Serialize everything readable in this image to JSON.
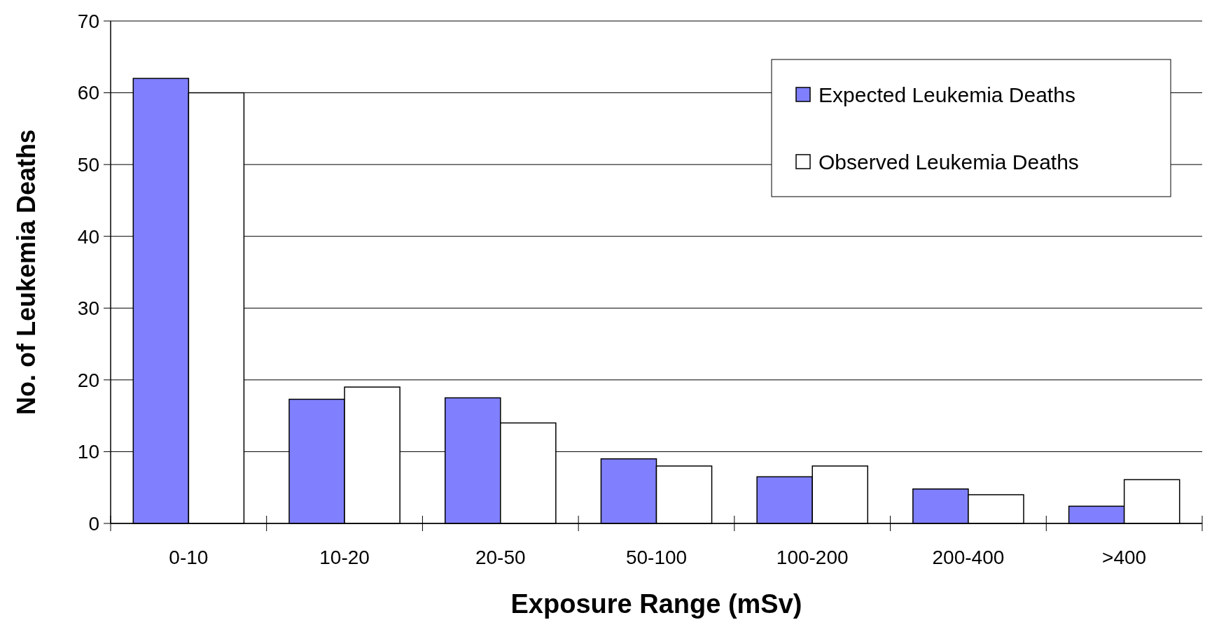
{
  "chart_data": {
    "type": "bar",
    "xlabel": "Exposure Range (mSv)",
    "ylabel": "No. of Leukemia Deaths",
    "categories": [
      "0-10",
      "10-20",
      "20-50",
      "50-100",
      "100-200",
      "200-400",
      ">400"
    ],
    "series": [
      {
        "name": "Expected Leukemia Deaths",
        "color": "#8080ff",
        "values": [
          62,
          17.3,
          17.5,
          9,
          6.5,
          4.8,
          2.4
        ]
      },
      {
        "name": "Observed Leukemia Deaths",
        "color": "#ffffff",
        "values": [
          60,
          19,
          14,
          8,
          8,
          4,
          6.1
        ]
      }
    ],
    "ylim": [
      0,
      70
    ],
    "yticks": [
      0,
      10,
      20,
      30,
      40,
      50,
      60,
      70
    ],
    "grid": "y",
    "legend": "top right"
  }
}
